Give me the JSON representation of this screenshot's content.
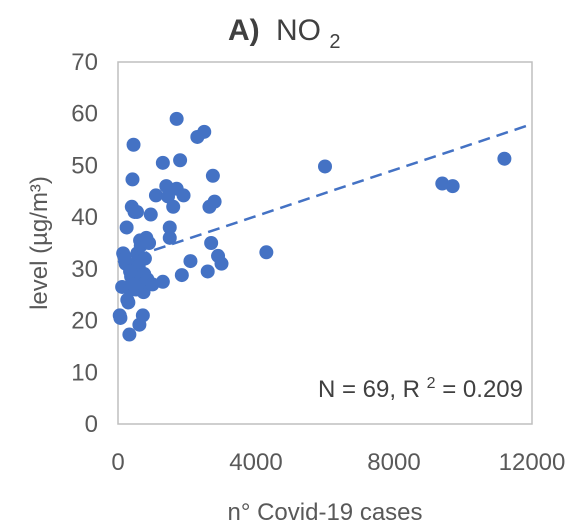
{
  "chart_data": {
    "type": "scatter",
    "title_prefix": "A)",
    "title_main": "NO",
    "title_subscript": "2",
    "xlabel": "n° Covid-19 cases",
    "ylabel": "level (µg/m³)",
    "xlim": [
      0,
      12000
    ],
    "ylim": [
      0,
      70
    ],
    "xticks": [
      0,
      4000,
      8000,
      12000
    ],
    "yticks": [
      0,
      10,
      20,
      30,
      40,
      50,
      60,
      70
    ],
    "grid": false,
    "annotation": {
      "prefix": "N = 69, R",
      "superscript": "2",
      "suffix": " = 0.209"
    },
    "colors": {
      "points": "#4472c4",
      "trend": "#4472c4",
      "frame": "#bfbfbf"
    },
    "trendline": {
      "style": "dashed",
      "x": [
        0,
        12000
      ],
      "y": [
        31.3,
        58.0
      ]
    },
    "points": [
      [
        50,
        21
      ],
      [
        70,
        20.5
      ],
      [
        120,
        26.5
      ],
      [
        180,
        32.5
      ],
      [
        150,
        33
      ],
      [
        250,
        38
      ],
      [
        220,
        31
      ],
      [
        270,
        24
      ],
      [
        300,
        23.5
      ],
      [
        330,
        17.3
      ],
      [
        350,
        26
      ],
      [
        380,
        28.5
      ],
      [
        400,
        42
      ],
      [
        420,
        47.3
      ],
      [
        450,
        54
      ],
      [
        480,
        41
      ],
      [
        500,
        29
      ],
      [
        520,
        26
      ],
      [
        540,
        30
      ],
      [
        560,
        33
      ],
      [
        580,
        31.5
      ],
      [
        600,
        30.5
      ],
      [
        620,
        19.2
      ],
      [
        640,
        35.5
      ],
      [
        660,
        34.5
      ],
      [
        680,
        28.5
      ],
      [
        700,
        26.5
      ],
      [
        720,
        21
      ],
      [
        740,
        25.5
      ],
      [
        760,
        29
      ],
      [
        780,
        32
      ],
      [
        800,
        27.5
      ],
      [
        820,
        36
      ],
      [
        850,
        28
      ],
      [
        900,
        35
      ],
      [
        950,
        40.5
      ],
      [
        1000,
        27
      ],
      [
        1100,
        44.2
      ],
      [
        1300,
        27.5
      ],
      [
        1300,
        50.5
      ],
      [
        1400,
        46
      ],
      [
        1450,
        44
      ],
      [
        1500,
        38
      ],
      [
        1500,
        36
      ],
      [
        1600,
        42
      ],
      [
        1700,
        59
      ],
      [
        1700,
        45.5
      ],
      [
        1800,
        51
      ],
      [
        1850,
        28.8
      ],
      [
        1900,
        44.2
      ],
      [
        2100,
        31.5
      ],
      [
        2300,
        55.5
      ],
      [
        2500,
        56.5
      ],
      [
        2600,
        29.5
      ],
      [
        2650,
        42
      ],
      [
        2700,
        35
      ],
      [
        2750,
        48
      ],
      [
        2800,
        43
      ],
      [
        2900,
        32.5
      ],
      [
        3000,
        31
      ],
      [
        4300,
        33.2
      ],
      [
        6000,
        49.8
      ],
      [
        9400,
        46.5
      ],
      [
        9700,
        46
      ],
      [
        11200,
        51.3
      ],
      [
        200,
        32
      ],
      [
        350,
        29.5
      ],
      [
        550,
        41
      ],
      [
        450,
        27
      ]
    ]
  }
}
